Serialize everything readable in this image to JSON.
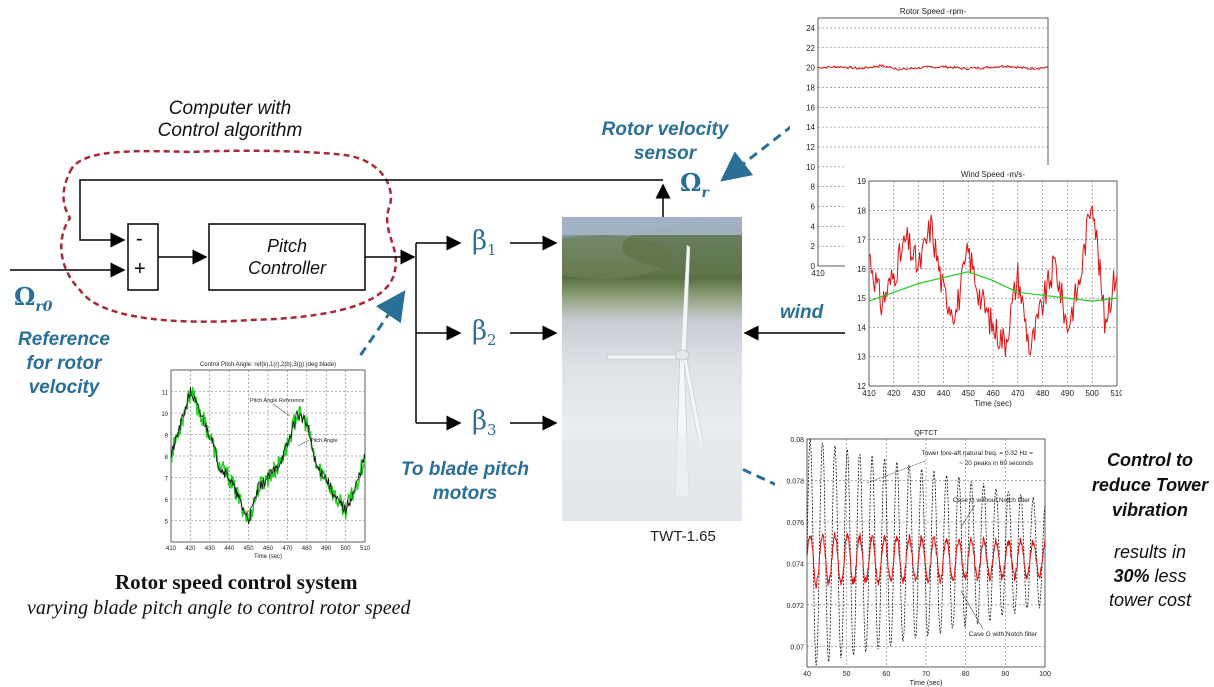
{
  "block": {
    "computer_caption": [
      "Computer with",
      "Control algorithm"
    ],
    "sum_minus": "-",
    "sum_plus": "+",
    "controller_label": [
      "Pitch",
      "Controller"
    ],
    "omega_r0": "Ω",
    "omega_r0_sub": "r0",
    "omega_r": "Ω",
    "omega_r_sub": "r",
    "beta_symbol": "β",
    "beta_subs": [
      "1",
      "2",
      "3"
    ],
    "reference_label": [
      "Reference",
      "for rotor",
      "velocity"
    ],
    "sensor_label": [
      "Rotor velocity",
      "sensor"
    ],
    "wind_label": "wind",
    "blade_motors_label": [
      "To blade pitch",
      "motors"
    ],
    "turbine_caption": "TWT-1.65"
  },
  "captions": {
    "system_title": "Rotor speed control system",
    "system_subtitle": "varying blade pitch angle to control rotor speed",
    "tower_line1": "Control to",
    "tower_line2": "reduce Tower",
    "tower_line3": "vibration",
    "results_line1": "results in",
    "results_bold": "30%",
    "results_line2": "less",
    "results_line3": "tower cost"
  },
  "colors": {
    "accent_blue": "#2a6f97",
    "dashed_red": "#a52a3a",
    "trace_red": "#e01010",
    "trace_green": "#22cc22"
  },
  "chart_data": [
    {
      "type": "line",
      "title": "Rotor Speed -rpm-",
      "ylim": [
        0,
        25
      ],
      "yticks": [
        "0",
        "2",
        "4",
        "6",
        "8",
        "10",
        "12",
        "14",
        "16",
        "18",
        "20",
        "22",
        "24"
      ],
      "xticks": [
        "410"
      ],
      "series": [
        {
          "values": [
            20.0,
            20.1,
            19.9,
            20.2,
            19.8,
            20.0,
            20.1,
            19.9,
            20.0,
            20.2,
            19.9,
            20.0
          ]
        }
      ]
    },
    {
      "type": "line",
      "title": "Wind Speed -m/s-",
      "xlabel": "Time (sec)",
      "xlim": [
        410,
        510
      ],
      "ylim": [
        12,
        19
      ],
      "yticks": [
        "12",
        "13",
        "14",
        "15",
        "16",
        "17",
        "18",
        "19"
      ],
      "xticks": [
        "410",
        "420",
        "430",
        "440",
        "450",
        "460",
        "470",
        "480",
        "490",
        "500",
        "510"
      ],
      "series": [
        {
          "x": [
            410,
            415,
            420,
            425,
            430,
            435,
            440,
            445,
            450,
            455,
            460,
            465,
            470,
            475,
            480,
            485,
            490,
            495,
            500,
            505,
            510
          ],
          "values": [
            16.5,
            14.8,
            15.8,
            17.0,
            16.0,
            17.5,
            15.2,
            14.5,
            16.6,
            15.0,
            14.0,
            13.5,
            15.8,
            13.2,
            14.8,
            16.2,
            14.0,
            15.6,
            18.6,
            14.2,
            16.0
          ]
        },
        {
          "x": [
            410,
            420,
            430,
            440,
            450,
            460,
            470,
            480,
            490,
            500,
            510
          ],
          "values": [
            14.9,
            15.2,
            15.5,
            15.7,
            15.9,
            15.6,
            15.2,
            15.1,
            15.0,
            14.9,
            15.0
          ]
        }
      ]
    },
    {
      "type": "line",
      "title": "Control Pitch Angle: ref(k),1(r),2(b),3(g) (deg blade)",
      "xlabel": "Time (sec)",
      "xlim": [
        410,
        510
      ],
      "ylim": [
        4,
        12
      ],
      "yticks": [
        "5",
        "6",
        "7",
        "8",
        "9",
        "10",
        "11"
      ],
      "xticks": [
        "410",
        "420",
        "430",
        "440",
        "450",
        "460",
        "470",
        "480",
        "490",
        "500",
        "510"
      ],
      "annotations": [
        "Pitch Angle Reference",
        "Pitch Angle"
      ],
      "series": [
        {
          "x": [
            410,
            415,
            420,
            425,
            430,
            435,
            440,
            445,
            450,
            455,
            460,
            465,
            470,
            475,
            480,
            485,
            490,
            495,
            500,
            505,
            510
          ],
          "values": [
            8.0,
            9.5,
            11.0,
            10.0,
            9.0,
            7.5,
            7.0,
            6.0,
            5.0,
            6.5,
            7.0,
            7.5,
            8.5,
            10.0,
            9.5,
            7.5,
            7.0,
            6.0,
            5.5,
            6.5,
            8.0
          ]
        }
      ]
    },
    {
      "type": "line",
      "title": "QFTCT",
      "xlabel": "Time (sec)",
      "xlim": [
        40,
        100
      ],
      "ylim": [
        0.069,
        0.08
      ],
      "yticks": [
        "0.07",
        "0.072",
        "0.074",
        "0.076",
        "0.078",
        "0.08"
      ],
      "xticks": [
        "40",
        "50",
        "60",
        "70",
        "80",
        "90",
        "100"
      ],
      "annotations": [
        "Tower fore-aft natural freq. = 0.32 Hz =",
        "~ 20 peaks in 60 seconds",
        "Case G without Notch filter",
        "Case G with Notch filter"
      ],
      "series": [
        {
          "name": "Case G without Notch filter",
          "amplitude_start": 0.0055,
          "amplitude_end": 0.0025,
          "center": 0.0745,
          "frequency_hz": 0.32
        },
        {
          "name": "Case G with Notch filter",
          "amplitude_start": 0.0012,
          "amplitude_end": 0.0008,
          "center": 0.0742,
          "frequency_hz": 0.32
        }
      ]
    }
  ]
}
